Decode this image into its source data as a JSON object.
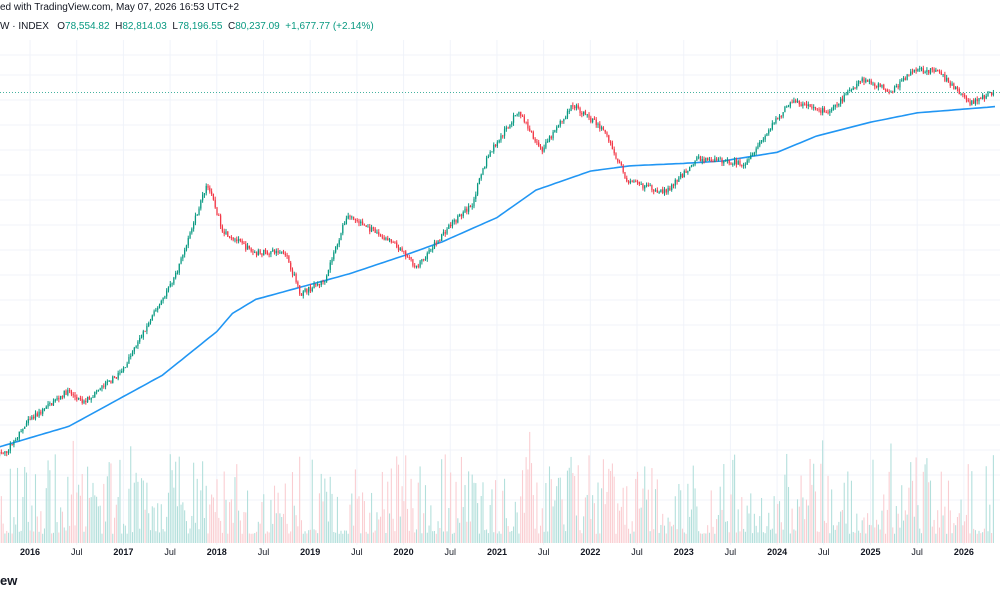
{
  "header": {
    "attribution": "ed with TradingView.com, May 07, 2026 16:53 UTC+2"
  },
  "ohlc": {
    "symbol": "W · INDEX",
    "open_label": "O",
    "open": "78,554.82",
    "high_label": "H",
    "high": "82,814.03",
    "low_label": "L",
    "low": "78,196.55",
    "close_label": "C",
    "close": "80,237.09",
    "change": "+1,677.77 (+2.14%)"
  },
  "footer": {
    "logo_text": "ew"
  },
  "colors": {
    "up": "#089981",
    "down": "#f23645",
    "ma": "#2196f3",
    "last_price_line": "#089981",
    "vol_up": "#b2dfdb",
    "vol_down": "#facdd1"
  },
  "chart_data": {
    "type": "candlestick",
    "x_range": [
      "2015-04",
      "2026-05"
    ],
    "y_scale": "log",
    "y_range": [
      200,
      130000
    ],
    "timeframe": "weekly",
    "x_tick_labels": [
      "Jul",
      "2016",
      "Jul",
      "2017",
      "Jul",
      "2018",
      "Jul",
      "2019",
      "Jul",
      "2020",
      "Jul",
      "2021",
      "Jul",
      "2022",
      "Jul",
      "2023",
      "Jul",
      "2024",
      "Jul",
      "2025",
      "Jul",
      "2026"
    ],
    "x_tick_dates": [
      "2015-07",
      "2016-01",
      "2016-07",
      "2017-01",
      "2017-07",
      "2018-01",
      "2018-07",
      "2019-01",
      "2019-07",
      "2020-01",
      "2020-07",
      "2021-01",
      "2021-07",
      "2022-01",
      "2022-07",
      "2023-01",
      "2023-07",
      "2024-01",
      "2024-07",
      "2025-01",
      "2025-07",
      "2026-01"
    ],
    "price_anchors": [
      {
        "date": "2015-04",
        "price": 230
      },
      {
        "date": "2015-10",
        "price": 260
      },
      {
        "date": "2016-01",
        "price": 430
      },
      {
        "date": "2016-06",
        "price": 700
      },
      {
        "date": "2016-08",
        "price": 580
      },
      {
        "date": "2017-01",
        "price": 950
      },
      {
        "date": "2017-05",
        "price": 2300
      },
      {
        "date": "2017-08",
        "price": 4500
      },
      {
        "date": "2017-12",
        "price": 19000
      },
      {
        "date": "2018-02",
        "price": 9000
      },
      {
        "date": "2018-06",
        "price": 6300
      },
      {
        "date": "2018-10",
        "price": 6400
      },
      {
        "date": "2018-12",
        "price": 3300
      },
      {
        "date": "2019-03",
        "price": 4000
      },
      {
        "date": "2019-06",
        "price": 11500
      },
      {
        "date": "2019-12",
        "price": 7200
      },
      {
        "date": "2020-03",
        "price": 5000
      },
      {
        "date": "2020-07",
        "price": 9500
      },
      {
        "date": "2020-10",
        "price": 13500
      },
      {
        "date": "2020-12",
        "price": 29000
      },
      {
        "date": "2021-04",
        "price": 60000
      },
      {
        "date": "2021-07",
        "price": 32000
      },
      {
        "date": "2021-11",
        "price": 66000
      },
      {
        "date": "2022-03",
        "price": 44000
      },
      {
        "date": "2022-06",
        "price": 19500
      },
      {
        "date": "2022-11",
        "price": 16500
      },
      {
        "date": "2023-03",
        "price": 28000
      },
      {
        "date": "2023-09",
        "price": 26000
      },
      {
        "date": "2024-03",
        "price": 70000
      },
      {
        "date": "2024-08",
        "price": 58000
      },
      {
        "date": "2024-12",
        "price": 100000
      },
      {
        "date": "2025-04",
        "price": 82000
      },
      {
        "date": "2025-07",
        "price": 118000
      },
      {
        "date": "2025-10",
        "price": 110000
      },
      {
        "date": "2026-02",
        "price": 68000
      },
      {
        "date": "2026-05",
        "price": 80237
      }
    ],
    "moving_average": [
      {
        "date": "2015-04",
        "price": 240
      },
      {
        "date": "2016-06",
        "price": 400
      },
      {
        "date": "2017-06",
        "price": 900
      },
      {
        "date": "2018-01",
        "price": 1800
      },
      {
        "date": "2018-03",
        "price": 2400
      },
      {
        "date": "2018-06",
        "price": 3000
      },
      {
        "date": "2019-01",
        "price": 3800
      },
      {
        "date": "2019-06",
        "price": 4500
      },
      {
        "date": "2020-01",
        "price": 6000
      },
      {
        "date": "2020-06",
        "price": 7500
      },
      {
        "date": "2021-01",
        "price": 11000
      },
      {
        "date": "2021-06",
        "price": 17000
      },
      {
        "date": "2022-01",
        "price": 23000
      },
      {
        "date": "2022-06",
        "price": 25000
      },
      {
        "date": "2023-01",
        "price": 26000
      },
      {
        "date": "2023-06",
        "price": 27000
      },
      {
        "date": "2024-01",
        "price": 31000
      },
      {
        "date": "2024-06",
        "price": 40000
      },
      {
        "date": "2025-01",
        "price": 50000
      },
      {
        "date": "2025-07",
        "price": 58000
      },
      {
        "date": "2026-05",
        "price": 64000
      }
    ],
    "last_price": 80237.09
  }
}
